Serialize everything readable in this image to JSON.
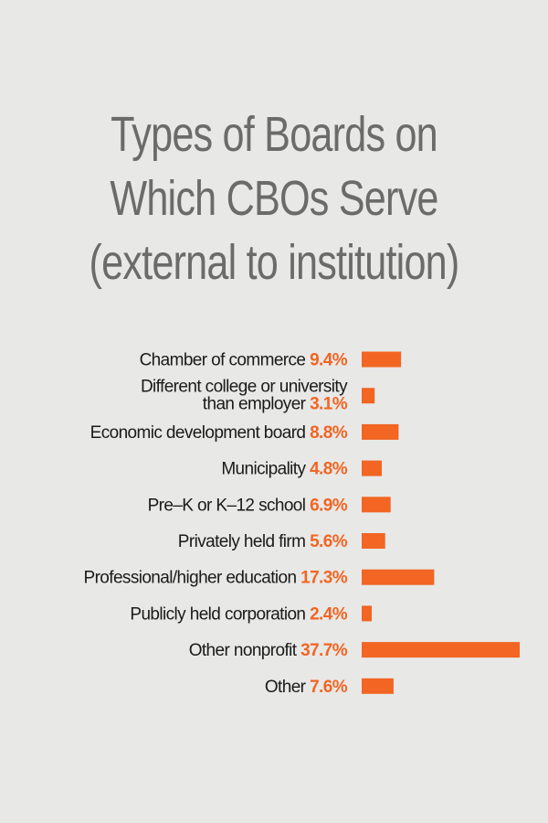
{
  "title_lines": [
    "Types of Boards on",
    "Which CBOs Serve",
    "(external to institution)"
  ],
  "colors": {
    "bar": "#f26522",
    "label": "#1a1a1a",
    "value": "#f26522",
    "title": "#6b6b6b",
    "background": "#e8e8e7"
  },
  "chart_data": {
    "type": "bar",
    "orientation": "horizontal",
    "title": "Types of Boards on Which CBOs Serve (external to institution)",
    "categories": [
      [
        "Chamber of commerce"
      ],
      [
        "Different college or university",
        "than employer"
      ],
      [
        "Economic development board"
      ],
      [
        "Municipality"
      ],
      [
        "Pre–K or K–12 school"
      ],
      [
        "Privately held firm"
      ],
      [
        "Professional/higher education"
      ],
      [
        "Publicly held corporation"
      ],
      [
        "Other nonprofit"
      ],
      [
        "Other"
      ]
    ],
    "values": [
      9.4,
      3.1,
      8.8,
      4.8,
      6.9,
      5.6,
      17.3,
      2.4,
      37.7,
      7.6
    ],
    "value_labels": [
      "9.4%",
      "3.1%",
      "8.8%",
      "4.8%",
      "6.9%",
      "5.6%",
      "17.3%",
      "2.4%",
      "37.7%",
      "7.6%"
    ],
    "unit": "%",
    "xlim": [
      0,
      37.7
    ],
    "grid": false,
    "legend": "none"
  }
}
